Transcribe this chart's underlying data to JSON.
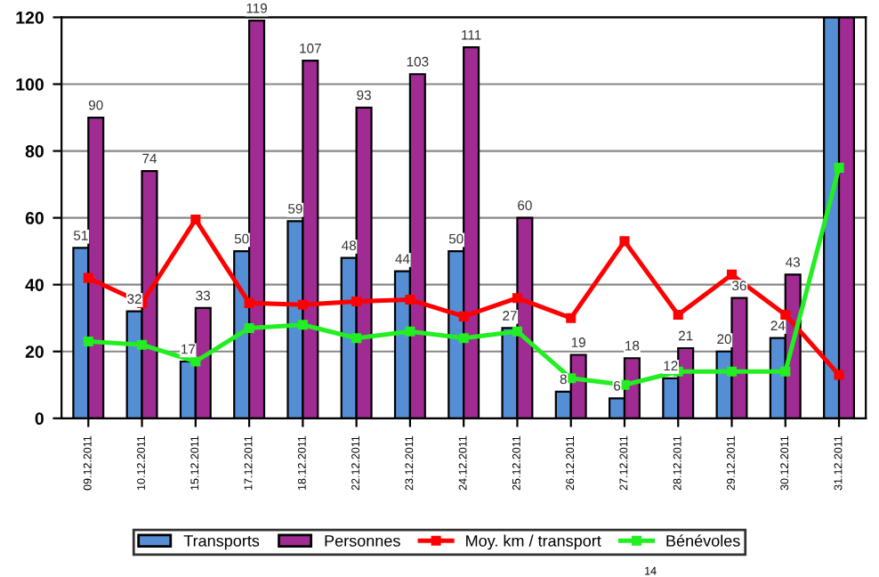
{
  "chart_data": {
    "type": "bar",
    "categories": [
      "09.12.2011",
      "10.12.2011",
      "15.12.2011",
      "17.12.2011",
      "18.12.2011",
      "22.12.2011",
      "23.12.2011",
      "24.12.2011",
      "25.12.2011",
      "26.12.2011",
      "27.12.2011",
      "28.12.2011",
      "29.12.2011",
      "30.12.2011",
      "31.12.2011"
    ],
    "series": [
      {
        "name": "Transports",
        "color": "#558ed5",
        "values": [
          51,
          32,
          17,
          50,
          59,
          48,
          44,
          50,
          27,
          8,
          6,
          12,
          20,
          24,
          120
        ],
        "value_labels": [
          "51",
          "32",
          "17",
          "50",
          "59",
          "48",
          "44",
          "50",
          "27",
          "8",
          "6",
          "12",
          "20",
          "24",
          null
        ]
      },
      {
        "name": "Personnes",
        "color": "#a02b93",
        "values": [
          90,
          74,
          33,
          119,
          107,
          93,
          103,
          111,
          60,
          19,
          18,
          21,
          36,
          43,
          120
        ],
        "value_labels": [
          "90",
          "74",
          "33",
          "119",
          "107",
          "93",
          "103",
          "111",
          "60",
          "19",
          "18",
          "21",
          "36",
          "43",
          null
        ]
      },
      {
        "name": "Moy. km / transport",
        "type": "line",
        "color": "#ff0000",
        "marker": "square",
        "values": [
          42,
          34.5,
          59.5,
          34.5,
          34,
          35,
          35.5,
          30.5,
          36,
          30,
          53,
          31,
          43,
          31,
          13
        ]
      },
      {
        "name": "Bénévoles",
        "type": "line",
        "color": "#22ee22",
        "marker": "square",
        "values": [
          23,
          22,
          17,
          27,
          28,
          24,
          26,
          24,
          26,
          12,
          10,
          14,
          14,
          14,
          75
        ]
      }
    ],
    "ylim": [
      0,
      120
    ],
    "yticks": [
      0,
      20,
      40,
      60,
      80,
      100,
      120
    ],
    "grid": "y",
    "legend": "bottom",
    "annotations": [
      "14"
    ]
  }
}
